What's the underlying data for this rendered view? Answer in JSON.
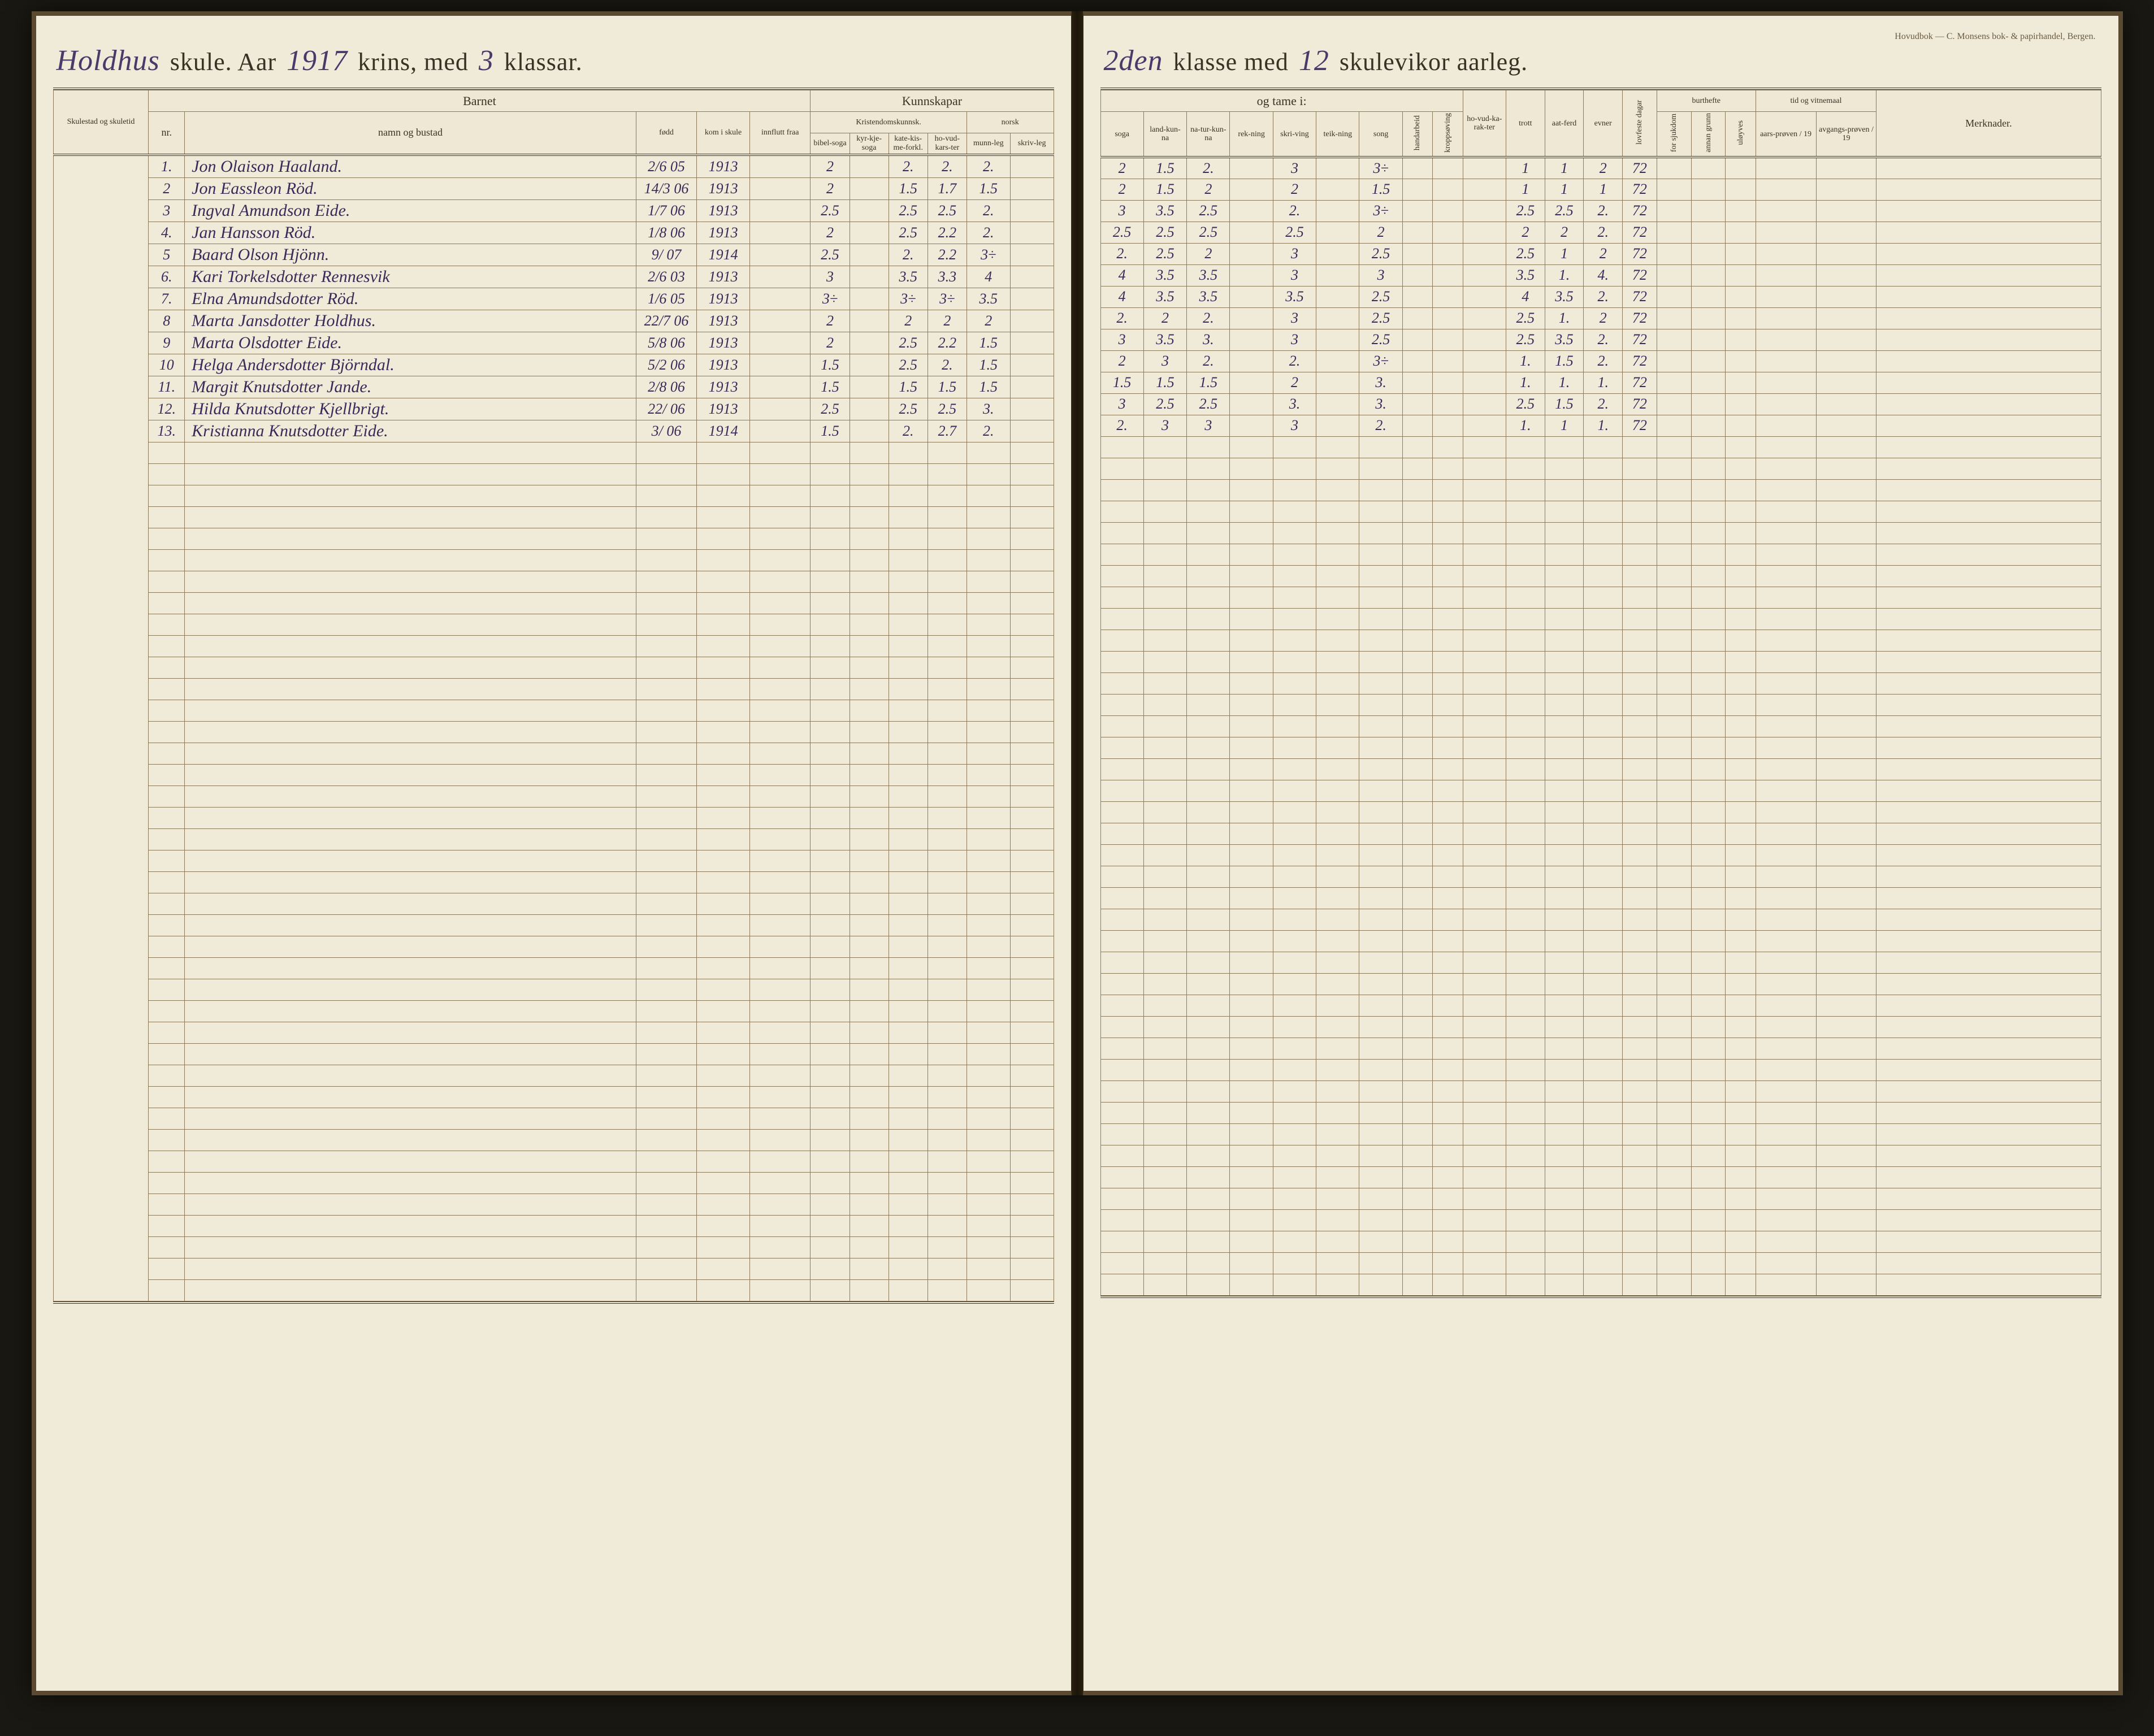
{
  "imprint": "Hovudbok — C. Monsens bok- & papirhandel, Bergen.",
  "header_left": {
    "school_name": "Holdhus",
    "printed1": "skule.   Aar",
    "year": "1917",
    "printed2": "krins, med",
    "class_count": "3",
    "printed3": "klassar."
  },
  "header_right": {
    "class_num": "2den",
    "printed1": "klasse med",
    "weeks": "12",
    "printed2": "skulevikor aarleg."
  },
  "left_side_label": "Skulestad og skuletid",
  "left_groups": {
    "barnet": "Barnet",
    "kunnskapar": "Kunnskapar",
    "kristendom": "Kristendomskunnsk.",
    "norsk": "norsk"
  },
  "left_cols": {
    "nr": "nr.",
    "namn": "namn og bustad",
    "fodd": "fødd",
    "kom": "kom i skule",
    "innflutt": "innflutt fraa",
    "bibel": "bibel-soga",
    "kyrkje": "kyr-kje-soga",
    "kate": "kate-kis-me-forkl.",
    "hovud": "ho-vud-kars-ter",
    "munn": "munn-leg",
    "skriv": "skriv-leg"
  },
  "right_groups": {
    "tame": "og tame i:",
    "burthefte": "burthefte",
    "tid": "tid og vitnemaal"
  },
  "right_cols": {
    "soga": "soga",
    "landkunna": "land-kun-na",
    "natur": "na-tur-kun-na",
    "rekning": "rek-ning",
    "skriving": "skri-ving",
    "teikning": "teik-ning",
    "song": "song",
    "handarbeid": "handarbeid",
    "kropp": "kroppsøving",
    "hovud": "ho-vud-ka-rak-ter",
    "trott": "trott",
    "aatferd": "aat-ferd",
    "evner": "evner",
    "lovfeste": "lovfeste dagar",
    "sjukdom": "for sjukdom",
    "annan": "annan grunn",
    "uloyves": "uløyves",
    "aars": "aars-prøven / 19",
    "avgangs": "avgangs-prøven / 19",
    "merknader": "Merknader."
  },
  "students": [
    {
      "nr": "1.",
      "name": "Jon Olaison Haaland.",
      "fodd": "2/6 05",
      "kom": "1913",
      "k1": "2",
      "k2": "",
      "k3": "2.",
      "k4": "2.",
      "n1": "2.",
      "n2": "",
      "soga": "2",
      "land": "1.5",
      "natur": "2.",
      "rek": "",
      "skr": "3",
      "teik": "",
      "song": "3÷",
      "hov": "",
      "trott": "1",
      "aat": "1",
      "evn": "2",
      "lov": "72"
    },
    {
      "nr": "2",
      "name": "Jon Eassleon Röd.",
      "fodd": "14/3 06",
      "kom": "1913",
      "k1": "2",
      "k2": "",
      "k3": "1.5",
      "k4": "1.7",
      "n1": "1.5",
      "n2": "",
      "soga": "2",
      "land": "1.5",
      "natur": "2",
      "rek": "",
      "skr": "2",
      "teik": "",
      "song": "1.5",
      "hov": "",
      "trott": "1",
      "aat": "1",
      "evn": "1",
      "lov": "72"
    },
    {
      "nr": "3",
      "name": "Ingval Amundson Eide.",
      "fodd": "1/7 06",
      "kom": "1913",
      "k1": "2.5",
      "k2": "",
      "k3": "2.5",
      "k4": "2.5",
      "n1": "2.",
      "n2": "",
      "soga": "3",
      "land": "3.5",
      "natur": "2.5",
      "rek": "",
      "skr": "2.",
      "teik": "",
      "song": "3÷",
      "hov": "",
      "trott": "2.5",
      "aat": "2.5",
      "evn": "2.",
      "lov": "72"
    },
    {
      "nr": "4.",
      "name": "Jan Hansson Röd.",
      "fodd": "1/8 06",
      "kom": "1913",
      "k1": "2",
      "k2": "",
      "k3": "2.5",
      "k4": "2.2",
      "n1": "2.",
      "n2": "",
      "soga": "2.5",
      "land": "2.5",
      "natur": "2.5",
      "rek": "",
      "skr": "2.5",
      "teik": "",
      "song": "2",
      "hov": "",
      "trott": "2",
      "aat": "2",
      "evn": "2.",
      "lov": "72"
    },
    {
      "nr": "5",
      "name": "Baard Olson Hjönn.",
      "fodd": "9/ 07",
      "kom": "1914",
      "k1": "2.5",
      "k2": "",
      "k3": "2.",
      "k4": "2.2",
      "n1": "3÷",
      "n2": "",
      "soga": "2.",
      "land": "2.5",
      "natur": "2",
      "rek": "",
      "skr": "3",
      "teik": "",
      "song": "2.5",
      "hov": "",
      "trott": "2.5",
      "aat": "1",
      "evn": "2",
      "lov": "72"
    },
    {
      "nr": "6.",
      "name": "Kari Torkelsdotter Rennesvik",
      "fodd": "2/6 03",
      "kom": "1913",
      "k1": "3",
      "k2": "",
      "k3": "3.5",
      "k4": "3.3",
      "n1": "4",
      "n2": "",
      "soga": "4",
      "land": "3.5",
      "natur": "3.5",
      "rek": "",
      "skr": "3",
      "teik": "",
      "song": "3",
      "hov": "",
      "trott": "3.5",
      "aat": "1.",
      "evn": "4.",
      "lov": "72"
    },
    {
      "nr": "7.",
      "name": "Elna Amundsdotter Röd.",
      "fodd": "1/6 05",
      "kom": "1913",
      "k1": "3÷",
      "k2": "",
      "k3": "3÷",
      "k4": "3÷",
      "n1": "3.5",
      "n2": "",
      "soga": "4",
      "land": "3.5",
      "natur": "3.5",
      "rek": "",
      "skr": "3.5",
      "teik": "",
      "song": "2.5",
      "hov": "",
      "trott": "4",
      "aat": "3.5",
      "evn": "2.",
      "lov": "72"
    },
    {
      "nr": "8",
      "name": "Marta Jansdotter Holdhus.",
      "fodd": "22/7 06",
      "kom": "1913",
      "k1": "2",
      "k2": "",
      "k3": "2",
      "k4": "2",
      "n1": "2",
      "n2": "",
      "soga": "2.",
      "land": "2",
      "natur": "2.",
      "rek": "",
      "skr": "3",
      "teik": "",
      "song": "2.5",
      "hov": "",
      "trott": "2.5",
      "aat": "1.",
      "evn": "2",
      "lov": "72"
    },
    {
      "nr": "9",
      "name": "Marta Olsdotter Eide.",
      "fodd": "5/8 06",
      "kom": "1913",
      "k1": "2",
      "k2": "",
      "k3": "2.5",
      "k4": "2.2",
      "n1": "1.5",
      "n2": "",
      "soga": "3",
      "land": "3.5",
      "natur": "3.",
      "rek": "",
      "skr": "3",
      "teik": "",
      "song": "2.5",
      "hov": "",
      "trott": "2.5",
      "aat": "3.5",
      "evn": "2.",
      "lov": "72"
    },
    {
      "nr": "10",
      "name": "Helga Andersdotter Björndal.",
      "fodd": "5/2 06",
      "kom": "1913",
      "k1": "1.5",
      "k2": "",
      "k3": "2.5",
      "k4": "2.",
      "n1": "1.5",
      "n2": "",
      "soga": "2",
      "land": "3",
      "natur": "2.",
      "rek": "",
      "skr": "2.",
      "teik": "",
      "song": "3÷",
      "hov": "",
      "trott": "1.",
      "aat": "1.5",
      "evn": "2.",
      "lov": "72"
    },
    {
      "nr": "11.",
      "name": "Margit Knutsdotter Jande.",
      "fodd": "2/8 06",
      "kom": "1913",
      "k1": "1.5",
      "k2": "",
      "k3": "1.5",
      "k4": "1.5",
      "n1": "1.5",
      "n2": "",
      "soga": "1.5",
      "land": "1.5",
      "natur": "1.5",
      "rek": "",
      "skr": "2",
      "teik": "",
      "song": "3.",
      "hov": "",
      "trott": "1.",
      "aat": "1.",
      "evn": "1.",
      "lov": "72"
    },
    {
      "nr": "12.",
      "name": "Hilda Knutsdotter Kjellbrigt.",
      "fodd": "22/ 06",
      "kom": "1913",
      "k1": "2.5",
      "k2": "",
      "k3": "2.5",
      "k4": "2.5",
      "n1": "3.",
      "n2": "",
      "soga": "3",
      "land": "2.5",
      "natur": "2.5",
      "rek": "",
      "skr": "3.",
      "teik": "",
      "song": "3.",
      "hov": "",
      "trott": "2.5",
      "aat": "1.5",
      "evn": "2.",
      "lov": "72"
    },
    {
      "nr": "13.",
      "name": "Kristianna Knutsdotter Eide.",
      "fodd": "3/ 06",
      "kom": "1914",
      "k1": "1.5",
      "k2": "",
      "k3": "2.",
      "k4": "2.7",
      "n1": "2.",
      "n2": "",
      "soga": "2.",
      "land": "3",
      "natur": "3",
      "rek": "",
      "skr": "3",
      "teik": "",
      "song": "2.",
      "hov": "",
      "trott": "1.",
      "aat": "1",
      "evn": "1.",
      "lov": "72"
    }
  ],
  "blank_rows": 40,
  "colors": {
    "page": "#f0ebd8",
    "ink": "#3a3224",
    "rule": "#8a7a5a",
    "script": "#3a2a5a"
  }
}
